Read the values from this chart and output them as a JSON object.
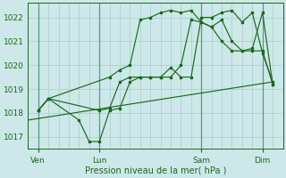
{
  "background_color": "#cce8e8",
  "grid_color": "#aacccc",
  "line_color": "#1a6b1a",
  "text_color": "#1a6b1a",
  "xlabel": "Pression niveau de la mer( hPa )",
  "ylim": [
    1016.5,
    1022.6
  ],
  "yticks": [
    1017,
    1018,
    1019,
    1020,
    1021,
    1022
  ],
  "xtick_labels": [
    "Ven",
    "Lun",
    "Sam",
    "Dim"
  ],
  "xtick_positions": [
    1,
    7,
    17,
    23
  ],
  "total_points": 25,
  "vline_positions": [
    1,
    7,
    17,
    23
  ],
  "series_straight": {
    "x": [
      0,
      24
    ],
    "y": [
      1017.7,
      1019.3
    ]
  },
  "series_A": {
    "x": [
      1,
      2,
      7,
      8,
      9,
      10,
      11,
      12,
      13,
      14,
      15,
      16,
      17,
      18,
      19,
      20,
      21,
      22,
      23,
      24
    ],
    "y": [
      1018.1,
      1018.6,
      1018.1,
      1018.2,
      1019.3,
      1019.5,
      1019.5,
      1019.5,
      1019.5,
      1019.5,
      1020.0,
      1021.9,
      1021.8,
      1021.6,
      1021.0,
      1020.6,
      1020.6,
      1020.6,
      1020.6,
      1019.2
    ]
  },
  "series_B": {
    "x": [
      1,
      2,
      5,
      6,
      7,
      8,
      9,
      10,
      11,
      12,
      13,
      14,
      15,
      16,
      17,
      18,
      19,
      20,
      21,
      22,
      23,
      24
    ],
    "y": [
      1018.1,
      1018.6,
      1017.7,
      1016.8,
      1016.8,
      1018.1,
      1018.2,
      1019.3,
      1019.5,
      1019.5,
      1019.5,
      1019.9,
      1019.5,
      1019.5,
      1022.0,
      1022.0,
      1022.2,
      1022.3,
      1021.8,
      1022.2,
      1020.5,
      1019.3
    ]
  },
  "series_C": {
    "x": [
      1,
      2,
      8,
      9,
      10,
      11,
      12,
      13,
      14,
      15,
      16,
      17,
      18,
      19,
      20,
      21,
      22,
      23,
      24
    ],
    "y": [
      1018.1,
      1018.6,
      1019.5,
      1019.8,
      1020.0,
      1021.9,
      1022.0,
      1022.2,
      1022.3,
      1022.2,
      1022.3,
      1021.8,
      1021.6,
      1021.9,
      1021.0,
      1020.6,
      1020.7,
      1022.2,
      1019.2
    ]
  }
}
